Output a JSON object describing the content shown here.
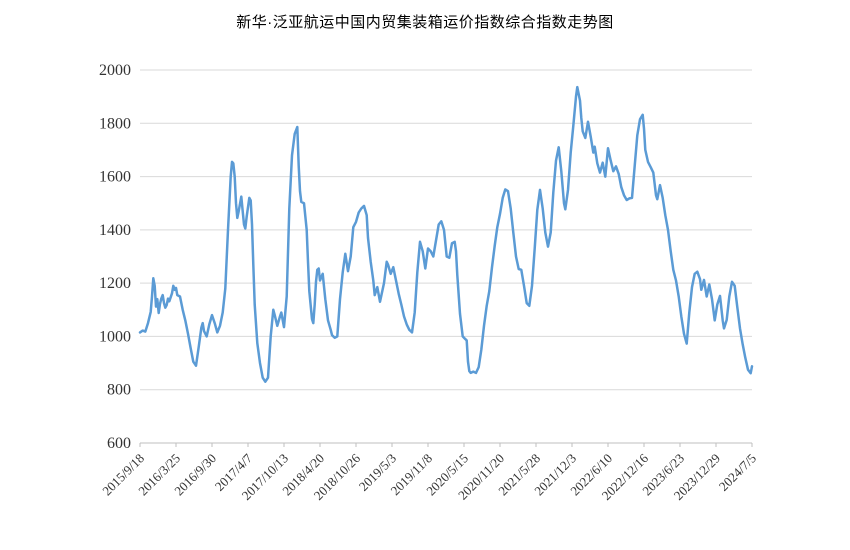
{
  "page": {
    "background": "#ffffff"
  },
  "chart_data": {
    "type": "line",
    "title": "新华·泛亚航运中国内贸集装箱运价指数综合指数走势图",
    "xlabel": "",
    "ylabel": "",
    "ylim": [
      600,
      2000
    ],
    "y_ticks": [
      600,
      800,
      1000,
      1200,
      1400,
      1600,
      1800,
      2000
    ],
    "grid": true,
    "legend": "none",
    "line_color": "#5B9BD5",
    "grid_color": "#D9D9D9",
    "axis_color": "#BFBFBF",
    "label_color": "#333333",
    "x_tick_labels": [
      "2015/9/18",
      "2016/3/25",
      "2016/9/30",
      "2017/4/7",
      "2017/10/13",
      "2018/4/20",
      "2018/10/26",
      "2019/5/3",
      "2019/11/8",
      "2020/5/15",
      "2020/11/20",
      "2021/5/28",
      "2021/12/3",
      "2022/6/10",
      "2022/12/16",
      "2023/6/23",
      "2023/12/29",
      "2024/7/5"
    ],
    "x_label_interval_weeks": 27,
    "x_total_weeks": 459,
    "x_unit": "week index from 2015/9/18 (weekly series)",
    "points": [
      [
        0,
        1015
      ],
      [
        2,
        1022
      ],
      [
        4,
        1018
      ],
      [
        6,
        1050
      ],
      [
        8,
        1092
      ],
      [
        9,
        1150
      ],
      [
        10,
        1218
      ],
      [
        11,
        1190
      ],
      [
        12,
        1112
      ],
      [
        13,
        1140
      ],
      [
        14,
        1088
      ],
      [
        15,
        1122
      ],
      [
        16,
        1142
      ],
      [
        17,
        1155
      ],
      [
        18,
        1125
      ],
      [
        19,
        1108
      ],
      [
        20,
        1118
      ],
      [
        21,
        1142
      ],
      [
        22,
        1132
      ],
      [
        24,
        1162
      ],
      [
        25,
        1190
      ],
      [
        26,
        1175
      ],
      [
        27,
        1182
      ],
      [
        28,
        1155
      ],
      [
        30,
        1150
      ],
      [
        32,
        1100
      ],
      [
        34,
        1060
      ],
      [
        36,
        1010
      ],
      [
        38,
        955
      ],
      [
        40,
        905
      ],
      [
        42,
        890
      ],
      [
        44,
        960
      ],
      [
        46,
        1032
      ],
      [
        47,
        1050
      ],
      [
        48,
        1020
      ],
      [
        50,
        1000
      ],
      [
        52,
        1045
      ],
      [
        54,
        1080
      ],
      [
        56,
        1050
      ],
      [
        58,
        1015
      ],
      [
        60,
        1040
      ],
      [
        62,
        1090
      ],
      [
        64,
        1180
      ],
      [
        66,
        1400
      ],
      [
        68,
        1600
      ],
      [
        69,
        1655
      ],
      [
        70,
        1650
      ],
      [
        71,
        1600
      ],
      [
        72,
        1500
      ],
      [
        73,
        1445
      ],
      [
        74,
        1470
      ],
      [
        76,
        1525
      ],
      [
        77,
        1470
      ],
      [
        78,
        1420
      ],
      [
        79,
        1405
      ],
      [
        80,
        1450
      ],
      [
        82,
        1520
      ],
      [
        83,
        1510
      ],
      [
        84,
        1420
      ],
      [
        85,
        1270
      ],
      [
        86,
        1120
      ],
      [
        88,
        975
      ],
      [
        90,
        900
      ],
      [
        92,
        845
      ],
      [
        94,
        830
      ],
      [
        96,
        845
      ],
      [
        98,
        1000
      ],
      [
        100,
        1100
      ],
      [
        101,
        1080
      ],
      [
        103,
        1040
      ],
      [
        105,
        1075
      ],
      [
        106,
        1090
      ],
      [
        108,
        1035
      ],
      [
        110,
        1150
      ],
      [
        112,
        1480
      ],
      [
        114,
        1680
      ],
      [
        116,
        1760
      ],
      [
        118,
        1786
      ],
      [
        119,
        1640
      ],
      [
        120,
        1545
      ],
      [
        121,
        1505
      ],
      [
        123,
        1500
      ],
      [
        125,
        1400
      ],
      [
        126,
        1280
      ],
      [
        127,
        1170
      ],
      [
        129,
        1065
      ],
      [
        130,
        1050
      ],
      [
        131,
        1120
      ],
      [
        132,
        1205
      ],
      [
        133,
        1250
      ],
      [
        134,
        1255
      ],
      [
        135,
        1210
      ],
      [
        137,
        1235
      ],
      [
        139,
        1140
      ],
      [
        141,
        1060
      ],
      [
        143,
        1025
      ],
      [
        144,
        1005
      ],
      [
        146,
        995
      ],
      [
        148,
        1000
      ],
      [
        150,
        1140
      ],
      [
        152,
        1240
      ],
      [
        154,
        1310
      ],
      [
        156,
        1245
      ],
      [
        158,
        1300
      ],
      [
        160,
        1410
      ],
      [
        162,
        1430
      ],
      [
        164,
        1465
      ],
      [
        166,
        1480
      ],
      [
        168,
        1490
      ],
      [
        170,
        1455
      ],
      [
        171,
        1370
      ],
      [
        173,
        1280
      ],
      [
        175,
        1210
      ],
      [
        176,
        1155
      ],
      [
        178,
        1185
      ],
      [
        180,
        1130
      ],
      [
        183,
        1200
      ],
      [
        185,
        1280
      ],
      [
        186,
        1270
      ],
      [
        188,
        1235
      ],
      [
        190,
        1260
      ],
      [
        192,
        1210
      ],
      [
        194,
        1160
      ],
      [
        196,
        1120
      ],
      [
        198,
        1075
      ],
      [
        200,
        1045
      ],
      [
        202,
        1025
      ],
      [
        204,
        1015
      ],
      [
        206,
        1090
      ],
      [
        208,
        1240
      ],
      [
        210,
        1355
      ],
      [
        212,
        1320
      ],
      [
        214,
        1255
      ],
      [
        216,
        1330
      ],
      [
        218,
        1320
      ],
      [
        220,
        1300
      ],
      [
        222,
        1360
      ],
      [
        224,
        1420
      ],
      [
        226,
        1432
      ],
      [
        228,
        1400
      ],
      [
        230,
        1300
      ],
      [
        232,
        1295
      ],
      [
        234,
        1350
      ],
      [
        236,
        1355
      ],
      [
        237,
        1320
      ],
      [
        238,
        1230
      ],
      [
        240,
        1085
      ],
      [
        242,
        1000
      ],
      [
        244,
        990
      ],
      [
        245,
        985
      ],
      [
        246,
        905
      ],
      [
        247,
        870
      ],
      [
        248,
        863
      ],
      [
        250,
        868
      ],
      [
        252,
        863
      ],
      [
        254,
        885
      ],
      [
        256,
        950
      ],
      [
        258,
        1040
      ],
      [
        260,
        1115
      ],
      [
        262,
        1170
      ],
      [
        264,
        1260
      ],
      [
        266,
        1340
      ],
      [
        268,
        1410
      ],
      [
        270,
        1460
      ],
      [
        272,
        1520
      ],
      [
        274,
        1552
      ],
      [
        276,
        1545
      ],
      [
        278,
        1480
      ],
      [
        280,
        1390
      ],
      [
        282,
        1300
      ],
      [
        284,
        1253
      ],
      [
        286,
        1250
      ],
      [
        288,
        1190
      ],
      [
        290,
        1125
      ],
      [
        292,
        1115
      ],
      [
        294,
        1190
      ],
      [
        296,
        1330
      ],
      [
        298,
        1475
      ],
      [
        300,
        1550
      ],
      [
        302,
        1480
      ],
      [
        304,
        1390
      ],
      [
        306,
        1337
      ],
      [
        308,
        1390
      ],
      [
        310,
        1540
      ],
      [
        312,
        1660
      ],
      [
        314,
        1710
      ],
      [
        316,
        1620
      ],
      [
        318,
        1500
      ],
      [
        319,
        1477
      ],
      [
        321,
        1550
      ],
      [
        323,
        1690
      ],
      [
        325,
        1790
      ],
      [
        327,
        1900
      ],
      [
        328,
        1936
      ],
      [
        330,
        1885
      ],
      [
        331,
        1820
      ],
      [
        332,
        1770
      ],
      [
        334,
        1745
      ],
      [
        336,
        1806
      ],
      [
        338,
        1750
      ],
      [
        340,
        1690
      ],
      [
        341,
        1712
      ],
      [
        343,
        1650
      ],
      [
        345,
        1615
      ],
      [
        347,
        1652
      ],
      [
        349,
        1600
      ],
      [
        351,
        1706
      ],
      [
        353,
        1660
      ],
      [
        355,
        1620
      ],
      [
        357,
        1638
      ],
      [
        359,
        1610
      ],
      [
        361,
        1560
      ],
      [
        363,
        1530
      ],
      [
        365,
        1512
      ],
      [
        367,
        1518
      ],
      [
        369,
        1520
      ],
      [
        371,
        1640
      ],
      [
        373,
        1755
      ],
      [
        375,
        1815
      ],
      [
        377,
        1832
      ],
      [
        378,
        1780
      ],
      [
        379,
        1700
      ],
      [
        381,
        1655
      ],
      [
        383,
        1635
      ],
      [
        385,
        1615
      ],
      [
        387,
        1530
      ],
      [
        388,
        1515
      ],
      [
        390,
        1568
      ],
      [
        392,
        1520
      ],
      [
        394,
        1455
      ],
      [
        396,
        1400
      ],
      [
        398,
        1320
      ],
      [
        400,
        1250
      ],
      [
        402,
        1210
      ],
      [
        404,
        1150
      ],
      [
        406,
        1075
      ],
      [
        408,
        1010
      ],
      [
        410,
        973
      ],
      [
        412,
        1090
      ],
      [
        414,
        1185
      ],
      [
        416,
        1235
      ],
      [
        418,
        1243
      ],
      [
        420,
        1215
      ],
      [
        421,
        1175
      ],
      [
        423,
        1212
      ],
      [
        425,
        1150
      ],
      [
        427,
        1195
      ],
      [
        429,
        1140
      ],
      [
        431,
        1060
      ],
      [
        433,
        1120
      ],
      [
        435,
        1152
      ],
      [
        437,
        1060
      ],
      [
        438,
        1030
      ],
      [
        440,
        1062
      ],
      [
        442,
        1150
      ],
      [
        444,
        1205
      ],
      [
        446,
        1190
      ],
      [
        448,
        1110
      ],
      [
        450,
        1030
      ],
      [
        452,
        970
      ],
      [
        454,
        920
      ],
      [
        456,
        875
      ],
      [
        458,
        862
      ],
      [
        459,
        888
      ]
    ]
  }
}
